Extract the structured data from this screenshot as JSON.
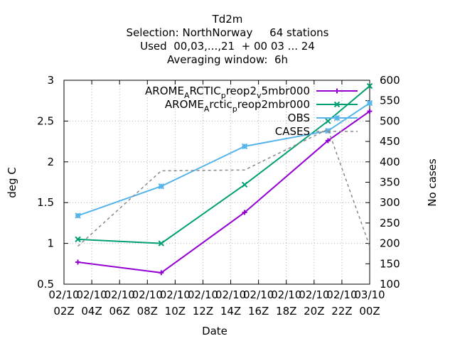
{
  "chart_data": {
    "type": "line",
    "title": [
      "Td2m",
      "Selection: NorthNorway     64 stations",
      "Used  00,03,...,21  + 00 03 ... 24",
      "Averaging window:  6h"
    ],
    "xlabel": "Date",
    "ylabel": "deg C",
    "y2label": "No cases",
    "ylim": [
      0.5,
      3
    ],
    "y2lim": [
      100,
      600
    ],
    "yticks": [
      "0.5",
      "1",
      "1.5",
      "2",
      "2.5",
      "3"
    ],
    "y2ticks": [
      "100",
      "150",
      "200",
      "250",
      "300",
      "350",
      "400",
      "450",
      "500",
      "550",
      "600"
    ],
    "xticks": [
      {
        "hour": 2,
        "top": "02/10",
        "bottom": "02Z"
      },
      {
        "hour": 4,
        "top": "02/10",
        "bottom": "04Z"
      },
      {
        "hour": 6,
        "top": "02/10",
        "bottom": "06Z"
      },
      {
        "hour": 8,
        "top": "02/10",
        "bottom": "08Z"
      },
      {
        "hour": 10,
        "top": "02/10",
        "bottom": "10Z"
      },
      {
        "hour": 12,
        "top": "02/10",
        "bottom": "12Z"
      },
      {
        "hour": 14,
        "top": "02/10",
        "bottom": "14Z"
      },
      {
        "hour": 16,
        "top": "02/10",
        "bottom": "16Z"
      },
      {
        "hour": 18,
        "top": "02/10",
        "bottom": "18Z"
      },
      {
        "hour": 20,
        "top": "02/10",
        "bottom": "20Z"
      },
      {
        "hour": 22,
        "top": "02/10",
        "bottom": "22Z"
      },
      {
        "hour": 24,
        "top": "03/10",
        "bottom": "00Z"
      }
    ],
    "grid": true,
    "legend_position": "top-right",
    "series": [
      {
        "name": "AROME_ARCTIC_preop2_v5mbr000",
        "axis": "y",
        "color": "#9400d3",
        "marker": "plus",
        "dash": "",
        "x": [
          3,
          9,
          15,
          21,
          24
        ],
        "y": [
          0.77,
          0.64,
          1.38,
          2.26,
          2.62
        ]
      },
      {
        "name": "AROME_Arctic_preop2mbr000",
        "axis": "y",
        "color": "#009e73",
        "marker": "x",
        "dash": "",
        "x": [
          3,
          9,
          15,
          21,
          24
        ],
        "y": [
          1.05,
          1.0,
          1.72,
          2.5,
          2.93
        ]
      },
      {
        "name": "OBS",
        "axis": "y",
        "color": "#56b4e9",
        "marker": "star",
        "dash": "",
        "x": [
          3,
          9,
          15,
          21,
          24
        ],
        "y": [
          1.34,
          1.7,
          2.19,
          2.38,
          2.72
        ]
      },
      {
        "name": "CASES",
        "axis": "y2",
        "color": "#888888",
        "marker": "",
        "dash": "4,4",
        "x": [
          3,
          9,
          15,
          21,
          24
        ],
        "y": [
          193,
          378,
          380,
          480,
          193
        ]
      }
    ]
  }
}
